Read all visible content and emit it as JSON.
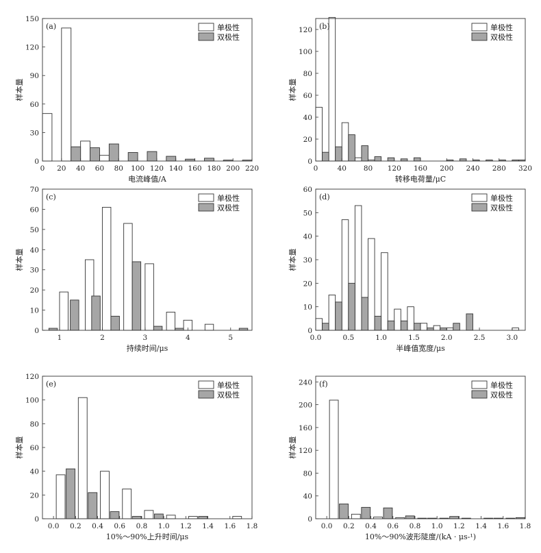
{
  "legend": {
    "unipolar": "单极性",
    "bipolar": "双极性"
  },
  "chart_data": [
    {
      "id": "a",
      "type": "bar",
      "panel_label": "(a)",
      "xlabel": "电流峰值/A",
      "ylabel": "样本量",
      "xlim": [
        0,
        220
      ],
      "ylim": [
        0,
        150
      ],
      "xticks": [
        0,
        20,
        40,
        60,
        80,
        100,
        120,
        140,
        160,
        180,
        200,
        220
      ],
      "yticks": [
        0,
        30,
        60,
        90,
        120,
        150
      ],
      "legend_position": "top-right",
      "grid": false,
      "series": [
        {
          "name": "单极性",
          "fill": "#ffffff",
          "bins": [
            [
              0,
              10,
              50
            ],
            [
              20,
              30,
              140
            ],
            [
              40,
              50,
              21
            ],
            [
              60,
              70,
              6
            ],
            [
              80,
              90,
              0
            ],
            [
              100,
              110,
              0
            ],
            [
              120,
              130,
              0
            ],
            [
              140,
              150,
              0
            ],
            [
              160,
              170,
              0
            ],
            [
              180,
              190,
              0
            ],
            [
              200,
              210,
              0
            ]
          ]
        },
        {
          "name": "双极性",
          "fill": "#a6a6a6",
          "bins": [
            [
              30,
              40,
              15
            ],
            [
              50,
              60,
              14
            ],
            [
              70,
              80,
              18
            ],
            [
              90,
              100,
              9
            ],
            [
              110,
              120,
              10
            ],
            [
              130,
              140,
              5
            ],
            [
              150,
              160,
              2
            ],
            [
              170,
              180,
              3
            ],
            [
              190,
              200,
              1
            ],
            [
              210,
              220,
              1
            ]
          ]
        }
      ]
    },
    {
      "id": "b",
      "type": "bar",
      "panel_label": "(b)",
      "xlabel": "转移电荷量/μC",
      "ylabel": "样本量",
      "xlim": [
        0,
        320
      ],
      "ylim": [
        0,
        130
      ],
      "xticks": [
        0,
        40,
        80,
        120,
        160,
        200,
        240,
        280,
        320
      ],
      "yticks": [
        0,
        20,
        40,
        60,
        80,
        100,
        120
      ],
      "legend_position": "top-right",
      "grid": false,
      "series": [
        {
          "name": "单极性",
          "fill": "#ffffff",
          "bins": [
            [
              0,
              10,
              49
            ],
            [
              20,
              30,
              131
            ],
            [
              40,
              50,
              35
            ],
            [
              60,
              70,
              3
            ],
            [
              80,
              90,
              1
            ],
            [
              100,
              110,
              0
            ],
            [
              120,
              130,
              0
            ],
            [
              140,
              150,
              0
            ]
          ]
        },
        {
          "name": "双极性",
          "fill": "#a6a6a6",
          "bins": [
            [
              10,
              20,
              8
            ],
            [
              30,
              40,
              13
            ],
            [
              50,
              60,
              24
            ],
            [
              70,
              80,
              14
            ],
            [
              90,
              100,
              4
            ],
            [
              110,
              120,
              3
            ],
            [
              130,
              140,
              2
            ],
            [
              150,
              160,
              3
            ],
            [
              200,
              210,
              1
            ],
            [
              220,
              230,
              2
            ],
            [
              240,
              250,
              1
            ],
            [
              260,
              270,
              1
            ],
            [
              280,
              290,
              1
            ],
            [
              300,
              310,
              1
            ],
            [
              310,
              320,
              1
            ]
          ]
        }
      ]
    },
    {
      "id": "c",
      "type": "bar",
      "panel_label": "(c)",
      "xlabel": "持续时间/μs",
      "ylabel": "样本量",
      "xlim": [
        0.6,
        5.5
      ],
      "ylim": [
        0,
        70
      ],
      "xticks": [
        1,
        2,
        3,
        4,
        5
      ],
      "yticks": [
        0,
        10,
        20,
        30,
        40,
        50,
        60,
        70
      ],
      "legend_position": "top-right",
      "grid": false,
      "series": [
        {
          "name": "单极性",
          "fill": "#ffffff",
          "bins": [
            [
              1.0,
              1.2,
              19
            ],
            [
              1.6,
              1.8,
              35
            ],
            [
              2.0,
              2.2,
              61
            ],
            [
              2.5,
              2.7,
              53
            ],
            [
              3.0,
              3.2,
              33
            ],
            [
              3.5,
              3.7,
              9
            ],
            [
              3.9,
              4.1,
              5
            ],
            [
              4.4,
              4.6,
              3
            ]
          ]
        },
        {
          "name": "双极性",
          "fill": "#a6a6a6",
          "bins": [
            [
              0.75,
              0.95,
              1
            ],
            [
              1.25,
              1.45,
              15
            ],
            [
              1.75,
              1.95,
              17
            ],
            [
              2.2,
              2.4,
              7
            ],
            [
              2.7,
              2.9,
              34
            ],
            [
              3.2,
              3.4,
              2
            ],
            [
              3.7,
              3.9,
              1
            ],
            [
              5.2,
              5.4,
              1
            ]
          ]
        }
      ]
    },
    {
      "id": "d",
      "type": "bar",
      "panel_label": "(d)",
      "xlabel": "半峰值宽度/μs",
      "ylabel": "样本量",
      "xlim": [
        0,
        3.2
      ],
      "ylim": [
        0,
        60
      ],
      "xticks": [
        "0.0",
        "0.5",
        "1.0",
        "1.5",
        "2.0",
        "2.5",
        "3.0"
      ],
      "yticks": [
        0,
        10,
        20,
        30,
        40,
        50,
        60
      ],
      "legend_position": "top-right",
      "grid": false,
      "series": [
        {
          "name": "单极性",
          "fill": "#ffffff",
          "bins": [
            [
              0.0,
              0.1,
              5
            ],
            [
              0.2,
              0.3,
              15
            ],
            [
              0.4,
              0.5,
              47
            ],
            [
              0.6,
              0.7,
              53
            ],
            [
              0.8,
              0.9,
              39
            ],
            [
              1.0,
              1.1,
              33
            ],
            [
              1.2,
              1.3,
              9
            ],
            [
              1.4,
              1.5,
              10
            ],
            [
              1.6,
              1.7,
              3
            ],
            [
              1.8,
              1.9,
              2
            ],
            [
              2.0,
              2.1,
              1
            ],
            [
              3.0,
              3.1,
              1
            ]
          ]
        },
        {
          "name": "双极性",
          "fill": "#a6a6a6",
          "bins": [
            [
              0.1,
              0.2,
              3
            ],
            [
              0.3,
              0.4,
              12
            ],
            [
              0.5,
              0.6,
              20
            ],
            [
              0.7,
              0.8,
              14
            ],
            [
              0.9,
              1.0,
              6
            ],
            [
              1.1,
              1.2,
              4
            ],
            [
              1.3,
              1.4,
              4
            ],
            [
              1.5,
              1.6,
              3
            ],
            [
              1.7,
              1.8,
              1
            ],
            [
              1.9,
              2.0,
              1
            ],
            [
              2.1,
              2.2,
              3
            ],
            [
              2.3,
              2.4,
              7
            ]
          ]
        }
      ]
    },
    {
      "id": "e",
      "type": "bar",
      "panel_label": "(e)",
      "xlabel": "10%～90%上升时间/μs",
      "ylabel": "样本量",
      "xlim": [
        -0.1,
        1.8
      ],
      "ylim": [
        0,
        120
      ],
      "xticks": [
        "0.0",
        "0.2",
        "0.4",
        "0.6",
        "0.8",
        "1.0",
        "1.2",
        "1.4",
        "1.6",
        "1.8"
      ],
      "yticks": [
        0,
        20,
        40,
        60,
        80,
        100,
        120
      ],
      "legend_position": "top-right",
      "grid": false,
      "series": [
        {
          "name": "单极性",
          "fill": "#ffffff",
          "bins": [
            [
              0.025,
              0.105,
              37
            ],
            [
              0.225,
              0.305,
              102
            ],
            [
              0.425,
              0.505,
              40
            ],
            [
              0.625,
              0.705,
              25
            ],
            [
              0.825,
              0.905,
              7
            ],
            [
              1.025,
              1.105,
              3
            ],
            [
              1.225,
              1.305,
              2
            ],
            [
              1.625,
              1.705,
              2
            ]
          ]
        },
        {
          "name": "双极性",
          "fill": "#a6a6a6",
          "bins": [
            [
              0.115,
              0.195,
              42
            ],
            [
              0.315,
              0.395,
              22
            ],
            [
              0.515,
              0.595,
              6
            ],
            [
              0.715,
              0.795,
              2
            ],
            [
              0.915,
              0.995,
              4
            ],
            [
              1.315,
              1.395,
              2
            ]
          ]
        }
      ]
    },
    {
      "id": "f",
      "type": "bar",
      "panel_label": "(f)",
      "xlabel": "10%～90%波形陡度/(kA · μs-¹)",
      "ylabel": "样本量",
      "xlim": [
        -0.1,
        1.8
      ],
      "ylim": [
        0,
        250
      ],
      "xticks": [
        "0.0",
        "0.2",
        "0.4",
        "0.6",
        "0.8",
        "1.0",
        "1.2",
        "1.4",
        "1.6",
        "1.8"
      ],
      "yticks": [
        0,
        40,
        80,
        120,
        160,
        200,
        240
      ],
      "legend_position": "top-right",
      "grid": false,
      "series": [
        {
          "name": "单极性",
          "fill": "#ffffff",
          "bins": [
            [
              0.025,
              0.105,
              208
            ],
            [
              0.225,
              0.305,
              8
            ],
            [
              0.425,
              0.505,
              3
            ],
            [
              0.625,
              0.705,
              2
            ],
            [
              0.825,
              0.905,
              1
            ],
            [
              1.025,
              1.105,
              1
            ],
            [
              1.225,
              1.305,
              1
            ],
            [
              1.425,
              1.505,
              1
            ],
            [
              1.625,
              1.705,
              1
            ]
          ]
        },
        {
          "name": "双极性",
          "fill": "#a6a6a6",
          "bins": [
            [
              0.115,
              0.195,
              26
            ],
            [
              0.315,
              0.395,
              20
            ],
            [
              0.515,
              0.595,
              19
            ],
            [
              0.715,
              0.795,
              5
            ],
            [
              0.915,
              0.995,
              1
            ],
            [
              1.115,
              1.195,
              4
            ],
            [
              1.515,
              1.595,
              1
            ],
            [
              1.715,
              1.795,
              2
            ]
          ]
        }
      ]
    }
  ]
}
